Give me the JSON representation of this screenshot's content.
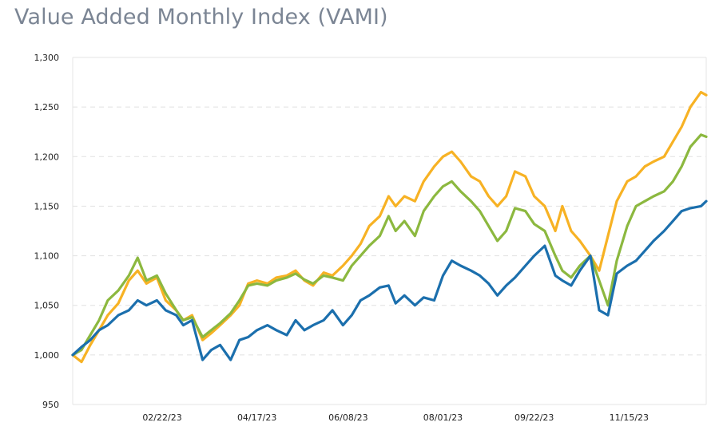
{
  "title": "Value Added Monthly Index (VAMI)",
  "chart_data": {
    "type": "line",
    "title": "Value Added Monthly Index (VAMI)",
    "xlabel": "",
    "ylabel": "",
    "ylim": [
      950,
      1300
    ],
    "yticks": [
      950,
      1000,
      1050,
      1100,
      1150,
      1200,
      1250,
      1300
    ],
    "ytick_labels": [
      "950",
      "1,000",
      "1,050",
      "1,100",
      "1,150",
      "1,200",
      "1,250",
      "1,300"
    ],
    "xlim": [
      "2023-01-02",
      "2023-12-29"
    ],
    "xticks": [
      "2023-02-22",
      "2023-04-17",
      "2023-06-08",
      "2023-08-01",
      "2023-09-22",
      "2023-11-15"
    ],
    "xtick_labels": [
      "02/22/23",
      "04/17/23",
      "06/08/23",
      "08/01/23",
      "09/22/23",
      "11/15/23"
    ],
    "grid": true,
    "legend": "none",
    "series": [
      {
        "color": "#f7b224",
        "points": [
          [
            "2023-01-02",
            1000
          ],
          [
            "2023-01-07",
            993
          ],
          [
            "2023-01-12",
            1010
          ],
          [
            "2023-01-17",
            1025
          ],
          [
            "2023-01-22",
            1040
          ],
          [
            "2023-01-28",
            1052
          ],
          [
            "2023-02-03",
            1075
          ],
          [
            "2023-02-08",
            1085
          ],
          [
            "2023-02-13",
            1072
          ],
          [
            "2023-02-19",
            1078
          ],
          [
            "2023-02-24",
            1055
          ],
          [
            "2023-03-02",
            1045
          ],
          [
            "2023-03-06",
            1035
          ],
          [
            "2023-03-11",
            1040
          ],
          [
            "2023-03-17",
            1015
          ],
          [
            "2023-03-22",
            1022
          ],
          [
            "2023-03-27",
            1030
          ],
          [
            "2023-04-02",
            1040
          ],
          [
            "2023-04-07",
            1050
          ],
          [
            "2023-04-12",
            1072
          ],
          [
            "2023-04-17",
            1075
          ],
          [
            "2023-04-23",
            1072
          ],
          [
            "2023-04-28",
            1078
          ],
          [
            "2023-05-04",
            1080
          ],
          [
            "2023-05-09",
            1085
          ],
          [
            "2023-05-14",
            1075
          ],
          [
            "2023-05-19",
            1070
          ],
          [
            "2023-05-25",
            1083
          ],
          [
            "2023-05-30",
            1080
          ],
          [
            "2023-06-05",
            1090
          ],
          [
            "2023-06-10",
            1100
          ],
          [
            "2023-06-15",
            1112
          ],
          [
            "2023-06-20",
            1130
          ],
          [
            "2023-06-26",
            1140
          ],
          [
            "2023-07-01",
            1160
          ],
          [
            "2023-07-05",
            1150
          ],
          [
            "2023-07-10",
            1160
          ],
          [
            "2023-07-16",
            1155
          ],
          [
            "2023-07-21",
            1175
          ],
          [
            "2023-07-27",
            1190
          ],
          [
            "2023-08-01",
            1200
          ],
          [
            "2023-08-06",
            1205
          ],
          [
            "2023-08-11",
            1195
          ],
          [
            "2023-08-17",
            1180
          ],
          [
            "2023-08-22",
            1175
          ],
          [
            "2023-08-27",
            1160
          ],
          [
            "2023-09-01",
            1150
          ],
          [
            "2023-09-06",
            1160
          ],
          [
            "2023-09-11",
            1185
          ],
          [
            "2023-09-17",
            1180
          ],
          [
            "2023-09-22",
            1160
          ],
          [
            "2023-09-28",
            1150
          ],
          [
            "2023-10-04",
            1125
          ],
          [
            "2023-10-08",
            1150
          ],
          [
            "2023-10-13",
            1125
          ],
          [
            "2023-10-18",
            1115
          ],
          [
            "2023-10-24",
            1100
          ],
          [
            "2023-10-29",
            1085
          ],
          [
            "2023-11-03",
            1120
          ],
          [
            "2023-11-08",
            1155
          ],
          [
            "2023-11-14",
            1175
          ],
          [
            "2023-11-19",
            1180
          ],
          [
            "2023-11-24",
            1190
          ],
          [
            "2023-11-29",
            1195
          ],
          [
            "2023-12-05",
            1200
          ],
          [
            "2023-12-10",
            1215
          ],
          [
            "2023-12-15",
            1230
          ],
          [
            "2023-12-20",
            1250
          ],
          [
            "2023-12-26",
            1265
          ],
          [
            "2023-12-29",
            1262
          ]
        ]
      },
      {
        "color": "#8cb83f",
        "points": [
          [
            "2023-01-02",
            1000
          ],
          [
            "2023-01-07",
            1005
          ],
          [
            "2023-01-12",
            1020
          ],
          [
            "2023-01-17",
            1035
          ],
          [
            "2023-01-22",
            1055
          ],
          [
            "2023-01-28",
            1065
          ],
          [
            "2023-02-03",
            1080
          ],
          [
            "2023-02-08",
            1098
          ],
          [
            "2023-02-13",
            1075
          ],
          [
            "2023-02-19",
            1080
          ],
          [
            "2023-02-24",
            1062
          ],
          [
            "2023-03-02",
            1045
          ],
          [
            "2023-03-06",
            1035
          ],
          [
            "2023-03-11",
            1038
          ],
          [
            "2023-03-17",
            1018
          ],
          [
            "2023-03-22",
            1025
          ],
          [
            "2023-03-27",
            1032
          ],
          [
            "2023-04-02",
            1042
          ],
          [
            "2023-04-07",
            1055
          ],
          [
            "2023-04-12",
            1070
          ],
          [
            "2023-04-17",
            1072
          ],
          [
            "2023-04-23",
            1070
          ],
          [
            "2023-04-28",
            1075
          ],
          [
            "2023-05-04",
            1078
          ],
          [
            "2023-05-09",
            1082
          ],
          [
            "2023-05-14",
            1076
          ],
          [
            "2023-05-19",
            1072
          ],
          [
            "2023-05-25",
            1080
          ],
          [
            "2023-05-30",
            1078
          ],
          [
            "2023-06-05",
            1075
          ],
          [
            "2023-06-10",
            1090
          ],
          [
            "2023-06-15",
            1100
          ],
          [
            "2023-06-20",
            1110
          ],
          [
            "2023-06-26",
            1120
          ],
          [
            "2023-07-01",
            1140
          ],
          [
            "2023-07-05",
            1125
          ],
          [
            "2023-07-10",
            1135
          ],
          [
            "2023-07-16",
            1120
          ],
          [
            "2023-07-21",
            1145
          ],
          [
            "2023-07-27",
            1160
          ],
          [
            "2023-08-01",
            1170
          ],
          [
            "2023-08-06",
            1175
          ],
          [
            "2023-08-11",
            1165
          ],
          [
            "2023-08-17",
            1155
          ],
          [
            "2023-08-22",
            1145
          ],
          [
            "2023-08-27",
            1130
          ],
          [
            "2023-09-01",
            1115
          ],
          [
            "2023-09-06",
            1125
          ],
          [
            "2023-09-11",
            1148
          ],
          [
            "2023-09-17",
            1145
          ],
          [
            "2023-09-22",
            1132
          ],
          [
            "2023-09-28",
            1125
          ],
          [
            "2023-10-04",
            1100
          ],
          [
            "2023-10-08",
            1085
          ],
          [
            "2023-10-13",
            1078
          ],
          [
            "2023-10-18",
            1090
          ],
          [
            "2023-10-24",
            1100
          ],
          [
            "2023-10-29",
            1075
          ],
          [
            "2023-11-03",
            1050
          ],
          [
            "2023-11-08",
            1095
          ],
          [
            "2023-11-14",
            1130
          ],
          [
            "2023-11-19",
            1150
          ],
          [
            "2023-11-24",
            1155
          ],
          [
            "2023-11-29",
            1160
          ],
          [
            "2023-12-05",
            1165
          ],
          [
            "2023-12-10",
            1175
          ],
          [
            "2023-12-15",
            1190
          ],
          [
            "2023-12-20",
            1210
          ],
          [
            "2023-12-26",
            1222
          ],
          [
            "2023-12-29",
            1220
          ]
        ]
      },
      {
        "color": "#1b6fad",
        "points": [
          [
            "2023-01-02",
            1000
          ],
          [
            "2023-01-07",
            1008
          ],
          [
            "2023-01-12",
            1015
          ],
          [
            "2023-01-17",
            1025
          ],
          [
            "2023-01-22",
            1030
          ],
          [
            "2023-01-28",
            1040
          ],
          [
            "2023-02-03",
            1045
          ],
          [
            "2023-02-08",
            1055
          ],
          [
            "2023-02-13",
            1050
          ],
          [
            "2023-02-19",
            1055
          ],
          [
            "2023-02-24",
            1045
          ],
          [
            "2023-03-02",
            1040
          ],
          [
            "2023-03-06",
            1030
          ],
          [
            "2023-03-11",
            1035
          ],
          [
            "2023-03-17",
            995
          ],
          [
            "2023-03-22",
            1005
          ],
          [
            "2023-03-27",
            1010
          ],
          [
            "2023-04-02",
            995
          ],
          [
            "2023-04-07",
            1015
          ],
          [
            "2023-04-12",
            1018
          ],
          [
            "2023-04-17",
            1025
          ],
          [
            "2023-04-23",
            1030
          ],
          [
            "2023-04-28",
            1025
          ],
          [
            "2023-05-04",
            1020
          ],
          [
            "2023-05-09",
            1035
          ],
          [
            "2023-05-14",
            1025
          ],
          [
            "2023-05-19",
            1030
          ],
          [
            "2023-05-25",
            1035
          ],
          [
            "2023-05-30",
            1045
          ],
          [
            "2023-06-05",
            1030
          ],
          [
            "2023-06-10",
            1040
          ],
          [
            "2023-06-15",
            1055
          ],
          [
            "2023-06-20",
            1060
          ],
          [
            "2023-06-26",
            1068
          ],
          [
            "2023-07-01",
            1070
          ],
          [
            "2023-07-05",
            1052
          ],
          [
            "2023-07-10",
            1060
          ],
          [
            "2023-07-16",
            1050
          ],
          [
            "2023-07-21",
            1058
          ],
          [
            "2023-07-27",
            1055
          ],
          [
            "2023-08-01",
            1080
          ],
          [
            "2023-08-06",
            1095
          ],
          [
            "2023-08-11",
            1090
          ],
          [
            "2023-08-17",
            1085
          ],
          [
            "2023-08-22",
            1080
          ],
          [
            "2023-08-27",
            1072
          ],
          [
            "2023-09-01",
            1060
          ],
          [
            "2023-09-06",
            1070
          ],
          [
            "2023-09-11",
            1078
          ],
          [
            "2023-09-17",
            1090
          ],
          [
            "2023-09-22",
            1100
          ],
          [
            "2023-09-28",
            1110
          ],
          [
            "2023-10-04",
            1080
          ],
          [
            "2023-10-08",
            1075
          ],
          [
            "2023-10-13",
            1070
          ],
          [
            "2023-10-18",
            1085
          ],
          [
            "2023-10-24",
            1100
          ],
          [
            "2023-10-29",
            1045
          ],
          [
            "2023-11-03",
            1040
          ],
          [
            "2023-11-08",
            1082
          ],
          [
            "2023-11-14",
            1090
          ],
          [
            "2023-11-19",
            1095
          ],
          [
            "2023-11-24",
            1105
          ],
          [
            "2023-11-29",
            1115
          ],
          [
            "2023-12-05",
            1125
          ],
          [
            "2023-12-10",
            1135
          ],
          [
            "2023-12-15",
            1145
          ],
          [
            "2023-12-20",
            1148
          ],
          [
            "2023-12-26",
            1150
          ],
          [
            "2023-12-29",
            1155
          ]
        ]
      }
    ]
  }
}
